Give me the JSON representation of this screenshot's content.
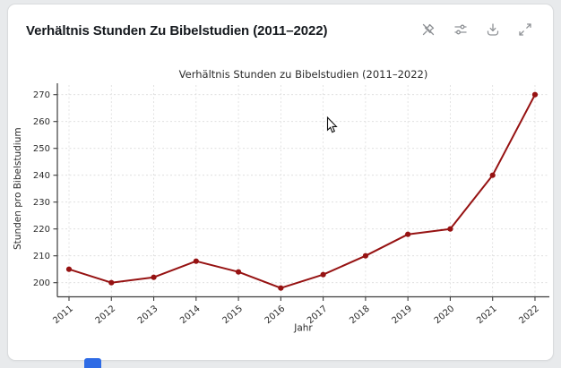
{
  "header": {
    "title": "Verhältnis Stunden Zu Bibelstudien (2011–2022)",
    "toolbar_icons": [
      {
        "name": "unpin-icon"
      },
      {
        "name": "sliders-icon"
      },
      {
        "name": "download-icon"
      },
      {
        "name": "expand-icon"
      }
    ]
  },
  "chart_data": {
    "type": "line",
    "title": "Verhältnis Stunden zu Bibelstudien (2011–2022)",
    "xlabel": "Jahr",
    "ylabel": "Stunden pro Bibelstudium",
    "categories": [
      "2011",
      "2012",
      "2013",
      "2014",
      "2015",
      "2016",
      "2017",
      "2018",
      "2019",
      "2020",
      "2021",
      "2022"
    ],
    "series": [
      {
        "name": "Stunden pro Bibelstudium",
        "values": [
          205,
          200,
          202,
          208,
          204,
          198,
          203,
          210,
          218,
          220,
          240,
          270
        ]
      }
    ],
    "yticks": [
      200,
      210,
      220,
      230,
      240,
      250,
      260,
      270
    ],
    "ylim": [
      195,
      275
    ],
    "grid": true,
    "grid_style": "dashed",
    "line_color": "#961212",
    "marker": "circle",
    "legend": "none"
  }
}
